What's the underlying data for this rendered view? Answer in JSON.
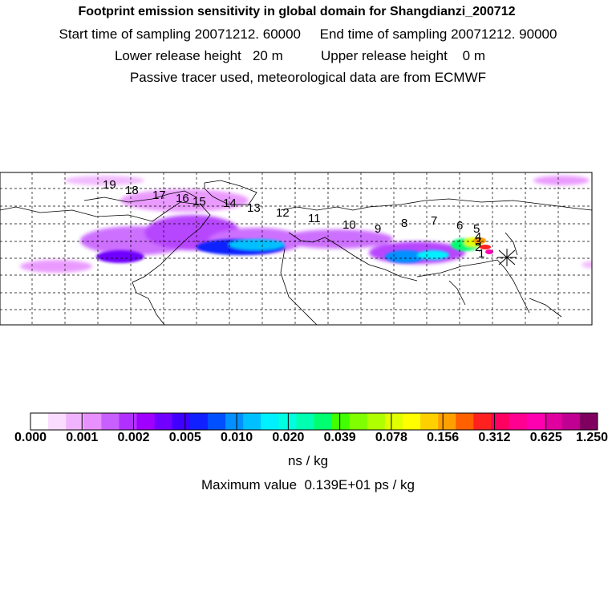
{
  "header": {
    "title": "Footprint emission sensitivity in global domain for Shangdianzi_200712",
    "sampling": "Start time of sampling 20071212. 60000     End time of sampling 20071212. 90000",
    "release": "Lower release height   20 m          Upper release height    0 m",
    "tracer": "Passive tracer used, meteorological data are from ECMWF"
  },
  "map": {
    "trajectory_labels": [
      "1",
      "2",
      "3",
      "4",
      "5",
      "6",
      "7",
      "8",
      "9",
      "10",
      "11",
      "12",
      "13",
      "14",
      "15",
      "16",
      "17",
      "18",
      "19"
    ],
    "receptor_marker": "star-icon"
  },
  "colorbar": {
    "colors": [
      "#ffffff",
      "#f9dcff",
      "#f0b4ff",
      "#e890ff",
      "#c860ff",
      "#b030ff",
      "#a000ff",
      "#7000ff",
      "#4000ff",
      "#1020ff",
      "#0050ff",
      "#0090ff",
      "#00c0ff",
      "#00f0ff",
      "#00ffe0",
      "#00ffb0",
      "#00ff70",
      "#40ff00",
      "#80ff00",
      "#b0ff00",
      "#e0ff00",
      "#ffff00",
      "#ffd000",
      "#ffa000",
      "#ff6000",
      "#ff2020",
      "#ff0060",
      "#ff0090",
      "#ff00b0",
      "#e000a0",
      "#c00090",
      "#800060"
    ],
    "tick_labels": [
      "0.000",
      "0.001",
      "0.002",
      "0.005",
      "0.010",
      "0.020",
      "0.039",
      "0.078",
      "0.156",
      "0.312",
      "0.625",
      "1.250"
    ],
    "units": "ns / kg"
  },
  "footer": {
    "max_value": "Maximum value  0.139E+01 ps / kg"
  }
}
